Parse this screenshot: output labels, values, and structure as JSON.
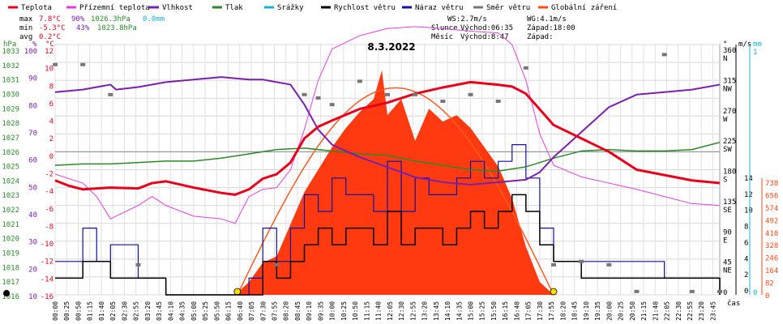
{
  "chart_data": {
    "type": "line",
    "title": "8.3.2022",
    "xlabel": "čas",
    "legend": [
      {
        "name": "Teplota",
        "color": "#e8001c"
      },
      {
        "name": "Přízemní teplota",
        "color": "#e040e0"
      },
      {
        "name": "Vlhkost",
        "color": "#7a1fb0"
      },
      {
        "name": "Tlak",
        "color": "#2a8a2a"
      },
      {
        "name": "Srážky",
        "color": "#19b0d8"
      },
      {
        "name": "Rychlost větru",
        "color": "#000000"
      },
      {
        "name": "Náraz větru",
        "color": "#1010a0"
      },
      {
        "name": "Směr větru",
        "color": "#777777"
      },
      {
        "name": "Globální záření",
        "color": "#ff4a1a"
      }
    ],
    "stats": {
      "max": {
        "label": "max",
        "temp": "7.8°C",
        "hum": "90%",
        "press": "1026.3hPa",
        "rain": "0.0mm"
      },
      "min": {
        "label": "min",
        "temp": "-5.3°C",
        "hum": "43%",
        "press": "1023.8hPa"
      },
      "avg": {
        "label": "avg",
        "temp": "0.2°C"
      }
    },
    "info": {
      "ws": "WS:2.7m/s",
      "wg": "WG:4.1m/s",
      "sun_label": "Slunce",
      "sunrise": "Východ:06:35",
      "sunset": "Západ:18:00",
      "moon_label": "Měsíc",
      "moonrise": "Východ:8:47",
      "moonset": "Západ:"
    },
    "axes": {
      "hpa": {
        "label": "hPa",
        "ticks": [
          "1033",
          "1032",
          "1031",
          "1030",
          "1029",
          "1028",
          "1027",
          "1026",
          "1025",
          "1024",
          "1023",
          "1022",
          "1021",
          "1020",
          "1019",
          "1018",
          "1017",
          "1016"
        ],
        "color": "#2a8a2a"
      },
      "pct": {
        "label": "%",
        "ticks": [
          "100",
          "90",
          "80",
          "70",
          "60",
          "50",
          "40",
          "30",
          "20",
          "10"
        ],
        "color": "#7a1fb0"
      },
      "temp": {
        "label": "°C",
        "ticks": [
          "12",
          "10",
          "8",
          "6",
          "4",
          "2",
          "0",
          "-2",
          "-4",
          "-6",
          "-8",
          "-10",
          "-12",
          "-14",
          "-16"
        ],
        "color": "#e8001c"
      },
      "dir": {
        "label": "°",
        "ticks": [
          [
            "360",
            "N"
          ],
          [
            "315",
            "NW"
          ],
          [
            "270",
            "W"
          ],
          [
            "225",
            "SW"
          ],
          [
            "180",
            "S"
          ],
          [
            "135",
            "SE"
          ],
          [
            "90",
            "E"
          ],
          [
            "45",
            "NE"
          ],
          [
            "0",
            ""
          ]
        ]
      },
      "ms": {
        "label": "m/s",
        "ticks": [
          "14",
          "12",
          "10",
          "8",
          "6",
          "4",
          "2",
          "0"
        ]
      },
      "mm": {
        "label": "mm",
        "ticks": [
          "1",
          "0"
        ],
        "color": "#19b0d8"
      },
      "wm2": {
        "ticks": [
          "738",
          "656",
          "574",
          "492",
          "410",
          "328",
          "246",
          "164",
          "82",
          "0"
        ],
        "color": "#ff4a1a"
      }
    },
    "x_ticks": [
      "00:00",
      "00:25",
      "00:50",
      "01:15",
      "01:40",
      "02:05",
      "02:30",
      "02:55",
      "03:20",
      "03:45",
      "04:10",
      "04:35",
      "05:00",
      "05:25",
      "05:50",
      "06:15",
      "06:40",
      "07:05",
      "07:30",
      "07:55",
      "08:20",
      "08:45",
      "09:10",
      "09:35",
      "10:00",
      "10:25",
      "10:50",
      "11:15",
      "11:40",
      "12:05",
      "12:30",
      "12:55",
      "13:20",
      "13:45",
      "14:10",
      "14:35",
      "15:00",
      "15:25",
      "15:50",
      "16:15",
      "16:40",
      "17:05",
      "17:30",
      "17:55",
      "18:20",
      "18:45",
      "19:10",
      "19:35",
      "20:00",
      "20:25",
      "20:50",
      "21:15",
      "21:40",
      "22:05",
      "22:30",
      "22:55",
      "23:20",
      "23:45"
    ],
    "series": [
      {
        "name": "Teplota",
        "unit": "°C",
        "x": [
          0,
          0.5,
          1,
          2,
          3,
          3.5,
          4,
          5,
          6,
          6.5,
          7,
          7.5,
          8,
          8.5,
          9,
          9.5,
          10,
          11,
          12,
          13,
          14,
          15,
          16,
          16.5,
          17,
          18,
          19,
          20,
          21,
          22,
          23,
          24
        ],
        "values": [
          -3.2,
          -3.8,
          -4.2,
          -4.0,
          -4.1,
          -3.5,
          -3.3,
          -4.0,
          -4.6,
          -4.8,
          -4.2,
          -3.0,
          -2.5,
          -1.2,
          1.5,
          2.8,
          3.5,
          4.8,
          5.5,
          6.5,
          7.2,
          7.8,
          7.5,
          7.3,
          6.5,
          3.0,
          1.5,
          0.0,
          -2.0,
          -2.6,
          -3.2,
          -3.5
        ]
      },
      {
        "name": "Přízemní teplota",
        "unit": "°C",
        "x": [
          0,
          1,
          1.5,
          2,
          3,
          3.5,
          4,
          5,
          6,
          6.5,
          7,
          7.5,
          8,
          8.5,
          9,
          9.5,
          10,
          11,
          12,
          13,
          14,
          15,
          16,
          16.5,
          17,
          17.5,
          18,
          19,
          20,
          21,
          22,
          23,
          24
        ],
        "values": [
          -2.5,
          -3.5,
          -5.0,
          -7.5,
          -6.0,
          -5.0,
          -6.0,
          -7.2,
          -7.5,
          -8.0,
          -5.0,
          -4.2,
          -4.0,
          -2.0,
          2.5,
          8.0,
          11.5,
          13.0,
          13.8,
          14.0,
          13.8,
          13.5,
          13.3,
          12.0,
          8.0,
          2.0,
          -1.5,
          -2.8,
          -3.5,
          -4.2,
          -5.0,
          -5.8,
          -6.0
        ]
      },
      {
        "name": "Vlhkost",
        "unit": "%",
        "x": [
          0,
          1,
          2,
          2.2,
          3,
          4,
          5,
          6,
          7,
          7.5,
          8,
          8.5,
          9,
          9.5,
          10,
          11,
          12,
          13,
          14,
          15,
          16,
          17,
          17.5,
          18,
          18.5,
          19,
          20,
          21,
          22,
          23,
          24
        ],
        "values": [
          81,
          82,
          84,
          82,
          83,
          85,
          86,
          87,
          86,
          86,
          85,
          84,
          76,
          66,
          60,
          55,
          51,
          47,
          45,
          44,
          45,
          46,
          49,
          55,
          60,
          65,
          75,
          80,
          81,
          82,
          84
        ]
      },
      {
        "name": "Tlak",
        "unit": "hPa",
        "x": [
          0,
          1,
          2,
          3,
          4,
          5,
          6,
          7,
          8,
          9,
          10,
          11,
          12,
          13,
          14,
          15,
          16,
          17,
          18,
          19,
          20,
          21,
          22,
          23,
          24
        ],
        "values": [
          1025.0,
          1025.1,
          1025.1,
          1025.2,
          1025.3,
          1025.3,
          1025.5,
          1025.8,
          1026.1,
          1026.2,
          1026.0,
          1025.8,
          1025.7,
          1025.3,
          1025.0,
          1024.7,
          1024.6,
          1024.9,
          1025.5,
          1026.0,
          1026.1,
          1026.0,
          1026.0,
          1026.1,
          1026.6
        ]
      },
      {
        "name": "Globální záření",
        "unit": "W/m2",
        "x": [
          6.5,
          7,
          7.5,
          8,
          8.5,
          9,
          9.5,
          10,
          10.5,
          11,
          11.5,
          11.8,
          12,
          12.5,
          13,
          13.5,
          14,
          14.5,
          15,
          15.5,
          16,
          16.5,
          17,
          17.5,
          18
        ],
        "values": [
          0,
          40,
          100,
          120,
          220,
          320,
          390,
          460,
          520,
          570,
          610,
          700,
          560,
          610,
          480,
          580,
          540,
          560,
          520,
          460,
          400,
          300,
          150,
          40,
          0
        ]
      },
      {
        "name": "Rychlost větru",
        "unit": "m/s",
        "x": [
          0,
          1,
          2,
          3,
          4,
          5,
          6,
          7,
          7.5,
          8,
          8.5,
          9,
          9.5,
          10,
          10.5,
          11,
          11.5,
          12,
          12.5,
          13,
          13.5,
          14,
          14.5,
          15,
          15.5,
          16,
          16.5,
          17,
          17.5,
          18,
          19,
          20,
          21,
          22,
          23,
          24
        ],
        "values": [
          1,
          2,
          1,
          1,
          0,
          0,
          0,
          0,
          2,
          1,
          2,
          3,
          4,
          3,
          4,
          4,
          3,
          5,
          3,
          4,
          4,
          3,
          4,
          5,
          4,
          5,
          6,
          5,
          3,
          2,
          1,
          1,
          1,
          1,
          1,
          0
        ]
      },
      {
        "name": "Náraz větru",
        "unit": "m/s",
        "x": [
          0,
          1,
          1.5,
          2,
          3,
          4,
          5,
          6,
          7,
          7.5,
          8,
          8.5,
          9,
          9.5,
          10,
          10.5,
          11,
          11.5,
          12,
          12.5,
          13,
          13.5,
          14,
          14.5,
          15,
          15.5,
          16,
          16.5,
          17,
          17.5,
          18,
          19,
          20,
          21,
          22,
          23,
          24
        ],
        "values": [
          2,
          4,
          2,
          3,
          1,
          0,
          0,
          0,
          1,
          4,
          2,
          4,
          6,
          5,
          7,
          6,
          6,
          5,
          8,
          5,
          7,
          6,
          6,
          7,
          8,
          7,
          8,
          9,
          7,
          4,
          2,
          2,
          2,
          2,
          1,
          1,
          0
        ]
      },
      {
        "name": "Směr větru",
        "unit": "°",
        "x": [
          0,
          1,
          2,
          3,
          8,
          9,
          9.5,
          10,
          11,
          12,
          13,
          14,
          15,
          16,
          17,
          18,
          19,
          20,
          21,
          22,
          23,
          24
        ],
        "values": [
          345,
          345,
          300,
          45,
          45,
          300,
          295,
          285,
          320,
          300,
          300,
          290,
          300,
          290,
          340,
          45,
          50,
          45,
          5,
          360,
          5,
          5
        ]
      }
    ]
  }
}
